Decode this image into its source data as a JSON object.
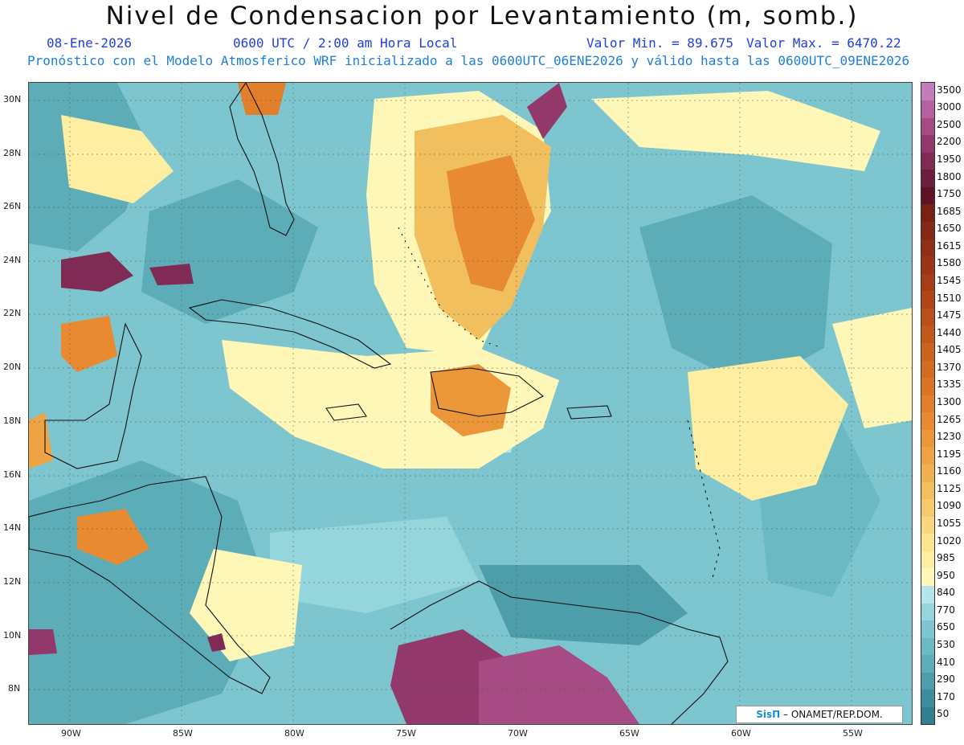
{
  "header": {
    "title": "Nivel de Condensacion por Levantamiento (m, somb.)",
    "date": "08-Ene-2026",
    "time": "0600 UTC / 2:00 am Hora Local",
    "min_label": "Valor Min. = 89.675",
    "max_label": "Valor Max. = 6470.22",
    "forecast_note": "Pronóstico con el Modelo Atmosferico WRF inicializado a las 0600UTC_06ENE2026 y válido hasta las  0600UTC_09ENE2026"
  },
  "map": {
    "lat_labels": [
      "30N",
      "28N",
      "26N",
      "24N",
      "22N",
      "20N",
      "18N",
      "16N",
      "14N",
      "12N",
      "10N",
      "8N"
    ],
    "lon_labels": [
      "90W",
      "85W",
      "80W",
      "75W",
      "70W",
      "65W",
      "60W",
      "55W"
    ],
    "value_range": {
      "min": 89.675,
      "max": 6470.22,
      "units": "m"
    }
  },
  "colorbar": {
    "levels": [
      "50",
      "170",
      "290",
      "410",
      "530",
      "650",
      "770",
      "840",
      "950",
      "985",
      "1020",
      "1055",
      "1090",
      "1125",
      "1160",
      "1195",
      "1230",
      "1265",
      "1300",
      "1335",
      "1370",
      "1405",
      "1440",
      "1475",
      "1510",
      "1545",
      "1580",
      "1615",
      "1650",
      "1685",
      "1750",
      "1800",
      "1950",
      "2200",
      "2500",
      "3000",
      "3500"
    ],
    "colors": [
      "#2f7f8f",
      "#3d8e9c",
      "#4d9eaa",
      "#5cadb8",
      "#6ab9c3",
      "#7ec6cf",
      "#95d5dc",
      "#b3e6ea",
      "#fff7b8",
      "#fdeea2",
      "#fbe48f",
      "#f8d77e",
      "#f5cb6e",
      "#f2bf5f",
      "#f0b150",
      "#eea444",
      "#eb9638",
      "#e78a31",
      "#e27f2b",
      "#dc7426",
      "#d56a22",
      "#cd611f",
      "#c4571c",
      "#ba4f1a",
      "#b04618",
      "#a53e17",
      "#9a3616",
      "#8f2f16",
      "#832915",
      "#772214",
      "#5e1326",
      "#6b1f3d",
      "#7f2b55",
      "#93386b",
      "#a74b84",
      "#b560a0",
      "#c27ebb"
    ]
  },
  "footer": {
    "brand": "SisΠ",
    "credit": "– ONAMET/REP.DOM."
  }
}
